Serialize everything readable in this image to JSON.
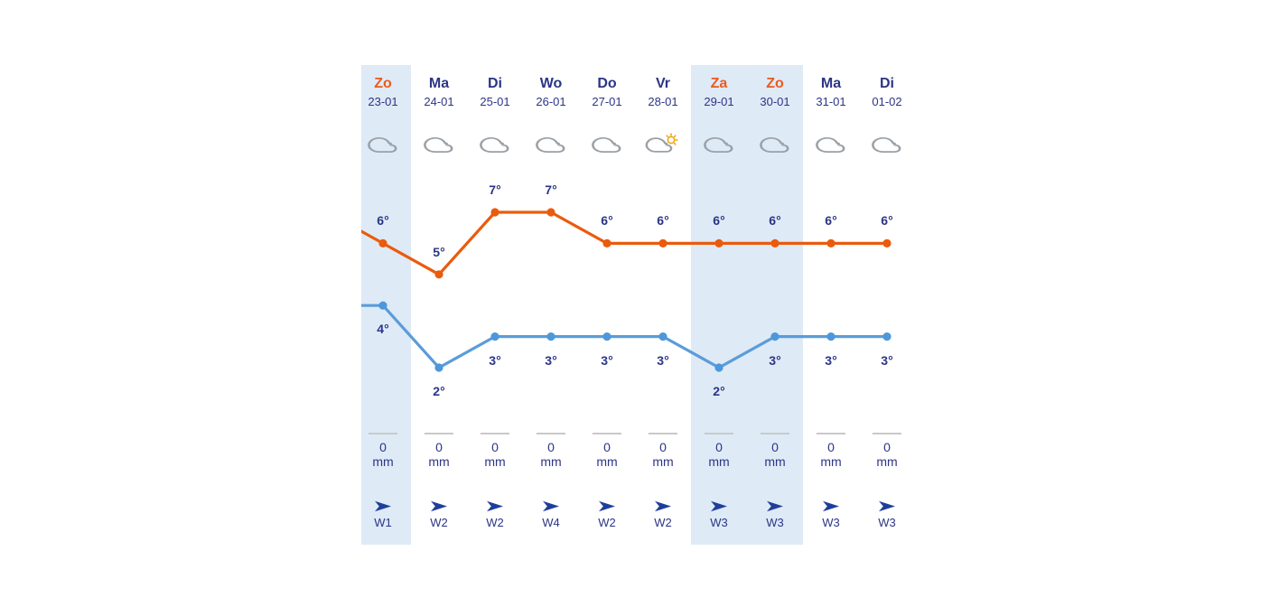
{
  "theme": {
    "highlight_bg": "#deeaf6",
    "navy": "#2b3586",
    "orange": "#ee591d",
    "date_gray": "#8d949e",
    "cloud_gray": "#9aa0a6",
    "sun_yellow": "#f2a516",
    "bar_gray": "#c9c9c9",
    "max_line": "#ea5b0d",
    "min_line": "#5b9cd9",
    "min_dot": "#4e97da",
    "wind_arrow": "#1f3e9b"
  },
  "columns": [
    {
      "day": "Zo",
      "date": "23-01",
      "weekend": true,
      "highlight": true,
      "icon": "cloud",
      "max_label": "6°",
      "min_label": "4°",
      "precip": "0",
      "precip_unit": "mm",
      "wind": "W1"
    },
    {
      "day": "Ma",
      "date": "24-01",
      "weekend": false,
      "highlight": false,
      "icon": "cloud",
      "max_label": "5°",
      "min_label": "2°",
      "precip": "0",
      "precip_unit": "mm",
      "wind": "W2"
    },
    {
      "day": "Di",
      "date": "25-01",
      "weekend": false,
      "highlight": false,
      "icon": "cloud",
      "max_label": "7°",
      "min_label": "3°",
      "precip": "0",
      "precip_unit": "mm",
      "wind": "W2"
    },
    {
      "day": "Wo",
      "date": "26-01",
      "weekend": false,
      "highlight": false,
      "icon": "cloud",
      "max_label": "7°",
      "min_label": "3°",
      "precip": "0",
      "precip_unit": "mm",
      "wind": "W4"
    },
    {
      "day": "Do",
      "date": "27-01",
      "weekend": false,
      "highlight": false,
      "icon": "cloud",
      "max_label": "6°",
      "min_label": "3°",
      "precip": "0",
      "precip_unit": "mm",
      "wind": "W2"
    },
    {
      "day": "Vr",
      "date": "28-01",
      "weekend": false,
      "highlight": false,
      "icon": "cloud-sun",
      "max_label": "6°",
      "min_label": "3°",
      "precip": "0",
      "precip_unit": "mm",
      "wind": "W2"
    },
    {
      "day": "Za",
      "date": "29-01",
      "weekend": true,
      "highlight": true,
      "icon": "cloud",
      "max_label": "6°",
      "min_label": "2°",
      "precip": "0",
      "precip_unit": "mm",
      "wind": "W3"
    },
    {
      "day": "Zo",
      "date": "30-01",
      "weekend": true,
      "highlight": true,
      "icon": "cloud",
      "max_label": "6°",
      "min_label": "3°",
      "precip": "0",
      "precip_unit": "mm",
      "wind": "W3"
    },
    {
      "day": "Ma",
      "date": "31-01",
      "weekend": false,
      "highlight": false,
      "icon": "cloud",
      "max_label": "6°",
      "min_label": "3°",
      "precip": "0",
      "precip_unit": "mm",
      "wind": "W3"
    },
    {
      "day": "Di",
      "date": "01-02",
      "weekend": false,
      "highlight": false,
      "icon": "cloud",
      "max_label": "6°",
      "min_label": "3°",
      "precip": "0",
      "precip_unit": "mm",
      "wind": "W3"
    }
  ],
  "chart_data": {
    "type": "line",
    "categories": [
      "23-01",
      "24-01",
      "25-01",
      "26-01",
      "27-01",
      "28-01",
      "29-01",
      "30-01",
      "31-01",
      "01-02"
    ],
    "series": [
      {
        "name": "max_temp",
        "color": "#ea5b0d",
        "values": [
          6,
          5,
          7,
          7,
          6,
          6,
          6,
          6,
          6,
          6
        ]
      },
      {
        "name": "min_temp",
        "color": "#5b9cd9",
        "values": [
          4,
          2,
          3,
          3,
          3,
          3,
          2,
          3,
          3,
          3
        ]
      }
    ],
    "unit": "°",
    "lead_in_from_left_edge": {
      "max_temp": 7,
      "min_temp": 4
    },
    "point_labels_visible": true,
    "grid": false,
    "legend": "none"
  }
}
